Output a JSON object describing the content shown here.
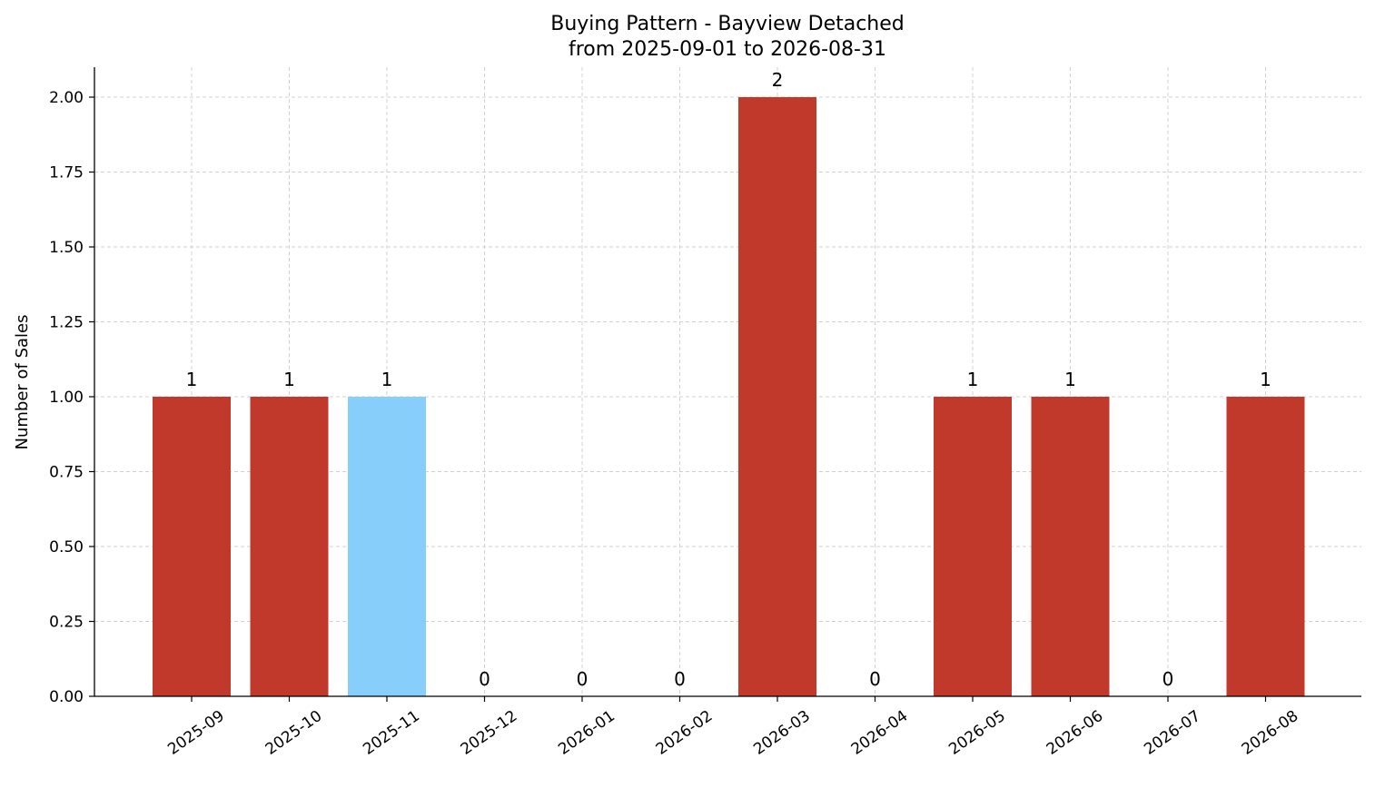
{
  "chart_data": {
    "type": "bar",
    "title": "Buying Pattern - Bayview Detached",
    "subtitle": "from 2025-09-01 to 2026-08-31",
    "xlabel": "",
    "ylabel": "Number of Sales",
    "ylim": [
      0,
      2.1
    ],
    "yticks": [
      "0.00",
      "0.25",
      "0.50",
      "0.75",
      "1.00",
      "1.25",
      "1.50",
      "1.75",
      "2.00"
    ],
    "categories": [
      "2025-09",
      "2025-10",
      "2025-11",
      "2025-12",
      "2026-01",
      "2026-02",
      "2026-03",
      "2026-04",
      "2026-05",
      "2026-06",
      "2026-07",
      "2026-08"
    ],
    "values": [
      1,
      1,
      1,
      0,
      0,
      0,
      2,
      0,
      1,
      1,
      0,
      1
    ],
    "data_labels": [
      "1",
      "1",
      "1",
      "0",
      "0",
      "0",
      "2",
      "0",
      "1",
      "1",
      "0",
      "1"
    ],
    "highlighted_category": "2025-11",
    "grid": true,
    "colors": {
      "bar": "#c0392b",
      "highlight": "#87cefa",
      "grid": "#d0d0d0",
      "axis": "#000000"
    }
  }
}
